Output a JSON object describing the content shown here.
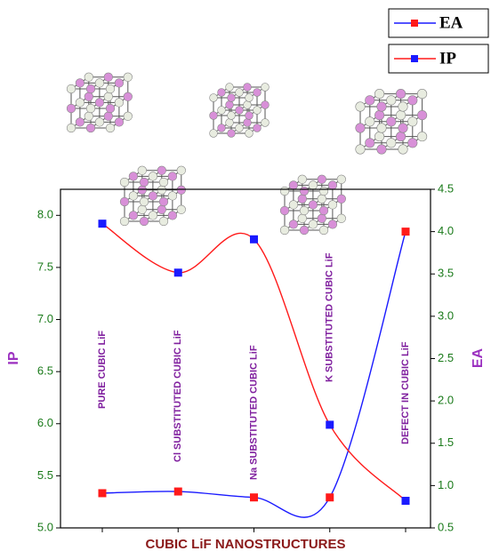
{
  "chart_data": {
    "type": "line",
    "x_label": "CUBIC LiF NANOSTRUCTURES",
    "y_label": "IP",
    "y2_label": "EA",
    "categories": [
      "PURE CUBIC LiF",
      "Cl SUBSTITUTED CUBIC LiF",
      "Na SUBSTITUTED CUBIC LiF",
      "K SUBSTITUTED CUBIC LiF",
      "DEFECT IN CUBIC LiF"
    ],
    "ylim": [
      5.0,
      8.25
    ],
    "yticks": [
      {
        "value": 5,
        "label": "5.0"
      },
      5.5,
      {
        "value": 6,
        "label": "6.0"
      },
      6.5,
      {
        "value": 7,
        "label": "7.0"
      },
      7.5,
      {
        "value": 8,
        "label": "8.0"
      }
    ],
    "y2lim": [
      0.5,
      4.5
    ],
    "y2ticks": [
      0.5,
      {
        "value": 1,
        "label": "1.0"
      },
      1.5,
      {
        "value": 2,
        "label": "2.0"
      },
      2.5,
      {
        "value": 3,
        "label": "3.0"
      },
      3.5,
      {
        "value": 4,
        "label": "4.0"
      },
      4.5
    ],
    "series": [
      {
        "name": "EA",
        "color": "#1a1aff",
        "marker_color": "#ff1a1a",
        "axis": "y2",
        "values": [
          0.91,
          0.93,
          0.86,
          0.86,
          4.0
        ]
      },
      {
        "name": "IP",
        "color": "#ff1a1a",
        "marker_color": "#1a1aff",
        "values": [
          7.92,
          7.45,
          7.77,
          5.99,
          5.26
        ]
      }
    ]
  }
}
